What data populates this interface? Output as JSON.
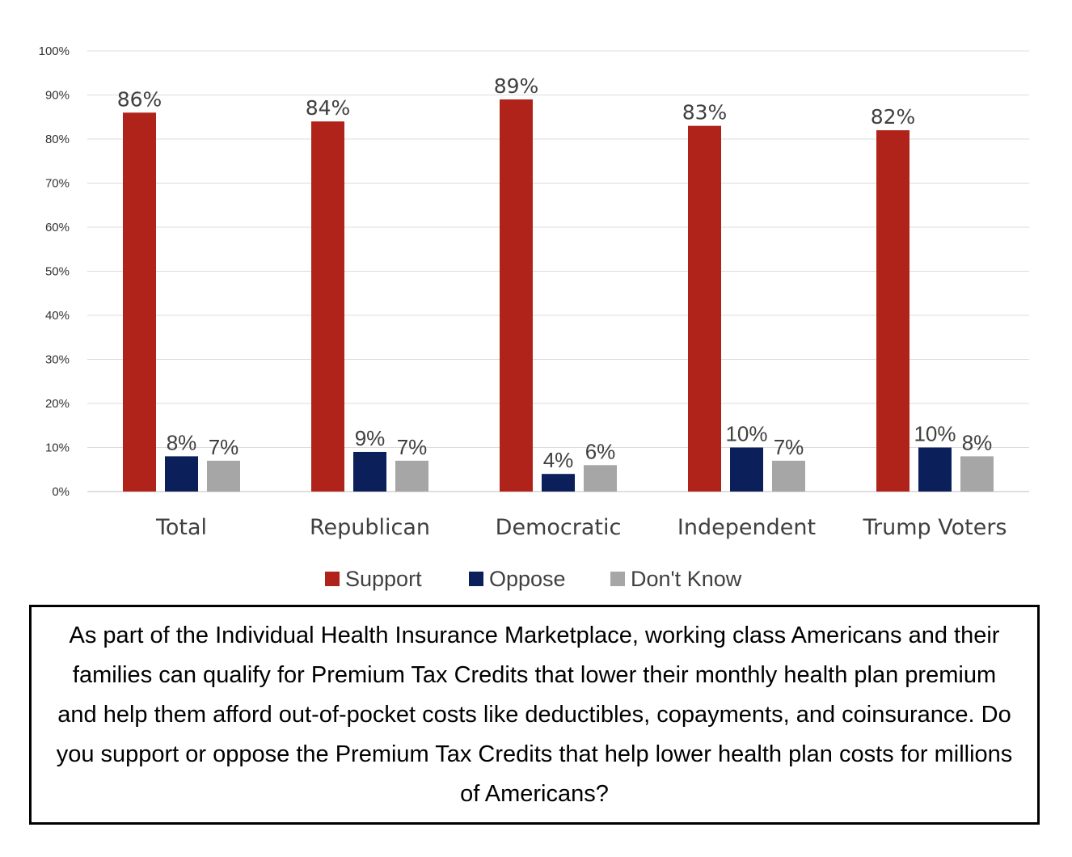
{
  "chart_data": {
    "type": "bar",
    "title": "",
    "xlabel": "",
    "ylabel": "",
    "ylim": [
      0,
      100
    ],
    "yticks": [
      "0%",
      "10%",
      "20%",
      "30%",
      "40%",
      "50%",
      "60%",
      "70%",
      "80%",
      "90%",
      "100%"
    ],
    "grid": true,
    "legend_position": "bottom",
    "categories": [
      "Total",
      "Republican",
      "Democratic",
      "Independent",
      "Trump Voters"
    ],
    "series": [
      {
        "name": "Support",
        "color": "#B0231A",
        "values": [
          86,
          84,
          89,
          83,
          82
        ],
        "labels": [
          "86%",
          "84%",
          "89%",
          "83%",
          "82%"
        ]
      },
      {
        "name": "Oppose",
        "color": "#0B1F5A",
        "values": [
          8,
          9,
          4,
          10,
          10
        ],
        "labels": [
          "8%",
          "9%",
          "4%",
          "10%",
          "10%"
        ]
      },
      {
        "name": "Don't Know",
        "color": "#A6A6A6",
        "values": [
          7,
          7,
          6,
          7,
          8
        ],
        "labels": [
          "7%",
          "7%",
          "6%",
          "7%",
          "8%"
        ]
      }
    ]
  },
  "question": "As part of the Individual Health Insurance Marketplace, working class Americans and their families can qualify for Premium Tax Credits that lower their monthly health plan premium and help them afford out-of-pocket costs like deductibles, copayments, and coinsurance. Do you support or oppose the Premium Tax Credits that help lower health plan costs for millions of Americans?"
}
